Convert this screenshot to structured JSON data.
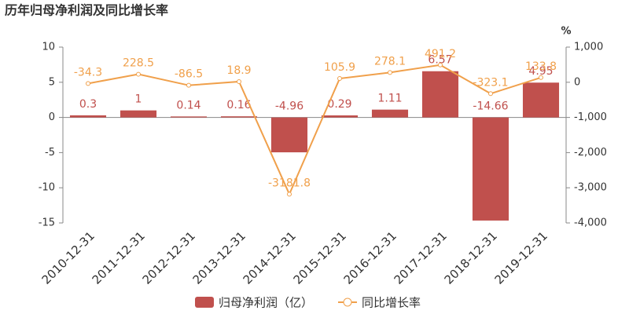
{
  "chart_data": {
    "type": "bar-line",
    "title": "历年归母净利润及同比增长率",
    "y2_unit": "%",
    "categories": [
      "2010-12-31",
      "2011-12-31",
      "2012-12-31",
      "2013-12-31",
      "2014-12-31",
      "2015-12-31",
      "2016-12-31",
      "2017-12-31",
      "2018-12-31",
      "2019-12-31"
    ],
    "series": [
      {
        "name": "归母净利润（亿）",
        "type": "bar",
        "color": "#c0504d",
        "values": [
          0.3,
          1,
          0.14,
          0.16,
          -4.96,
          0.29,
          1.11,
          6.57,
          -14.66,
          4.95
        ]
      },
      {
        "name": "同比增长率",
        "type": "line",
        "axis": "y2",
        "color": "#f0a04b",
        "values": [
          -34.3,
          228.5,
          -86.5,
          18.9,
          -3181.8,
          105.9,
          278.1,
          491.2,
          -323.1,
          133.8
        ]
      }
    ],
    "ylim": [
      -15,
      10
    ],
    "yticks": [
      10,
      5,
      0,
      -5,
      -10,
      -15
    ],
    "y2lim": [
      -4000,
      1000
    ],
    "y2ticks": [
      {
        "value": 1000,
        "label": "1,000"
      },
      0,
      {
        "value": -1000,
        "label": "-1,000"
      },
      {
        "value": -2000,
        "label": "-2,000"
      },
      {
        "value": -3000,
        "label": "-3,000"
      },
      {
        "value": -4000,
        "label": "-4,000"
      }
    ]
  }
}
